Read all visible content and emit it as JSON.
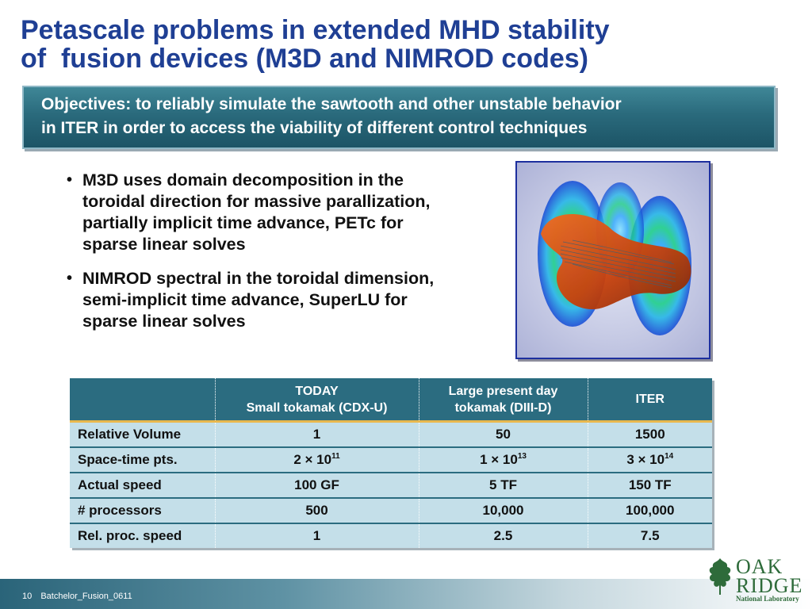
{
  "title": {
    "line1": "Petascale problems in extended MHD stability",
    "line2": "of  fusion devices (M3D and NIMROD codes)"
  },
  "objectives": {
    "line1": "Objectives: to reliably simulate the sawtooth and other unstable behavior",
    "line2": "in ITER in order to access the viability of different control techniques"
  },
  "bullets": [
    {
      "marker": "•",
      "lines": [
        "M3D uses domain decomposition in the",
        "toroidal direction for massive parallization,",
        "partially implicit time advance, PETc for",
        "sparse linear solves"
      ]
    },
    {
      "marker": "•",
      "lines": [
        "NIMROD spectral in the toroidal dimension,",
        "semi-implicit time advance, SuperLU for",
        "sparse linear solves"
      ]
    }
  ],
  "table": {
    "headers": [
      {
        "line1": "",
        "line2": ""
      },
      {
        "line1": "TODAY",
        "line2": "Small tokamak (CDX-U)"
      },
      {
        "line1": "Large present day",
        "line2": "tokamak (DIII-D)"
      },
      {
        "line1": "ITER",
        "line2": ""
      }
    ],
    "rows": [
      {
        "label": "Relative Volume",
        "cells": [
          {
            "base": "1",
            "exp": ""
          },
          {
            "base": "50",
            "exp": ""
          },
          {
            "base": "1500",
            "exp": ""
          }
        ]
      },
      {
        "label": "Space-time pts.",
        "cells": [
          {
            "base": "2 × 10",
            "exp": "11"
          },
          {
            "base": "1 × 10",
            "exp": "13"
          },
          {
            "base": "3 × 10",
            "exp": "14"
          }
        ]
      },
      {
        "label": "Actual speed",
        "cells": [
          {
            "base": "100 GF",
            "exp": ""
          },
          {
            "base": "5 TF",
            "exp": ""
          },
          {
            "base": "150 TF",
            "exp": ""
          }
        ]
      },
      {
        "label": "# processors",
        "cells": [
          {
            "base": "500",
            "exp": ""
          },
          {
            "base": "10,000",
            "exp": ""
          },
          {
            "base": "100,000",
            "exp": ""
          }
        ]
      },
      {
        "label": "Rel. proc. speed",
        "cells": [
          {
            "base": "1",
            "exp": ""
          },
          {
            "base": "2.5",
            "exp": ""
          },
          {
            "base": "7.5",
            "exp": ""
          }
        ]
      }
    ]
  },
  "footer": {
    "slide_number": "10",
    "label": "Batchelor_Fusion_0611"
  },
  "logo": {
    "line1": "OAK",
    "line2": "RIDGE",
    "line3": "National Laboratory"
  },
  "colors": {
    "title": "#1f3f94",
    "objectives_bg": "#2a6a7c",
    "table_header": "#2b6c80",
    "table_cell": "#c4dfe9",
    "header_underline": "#e9b84e",
    "logo_green": "#2e6b3a"
  }
}
